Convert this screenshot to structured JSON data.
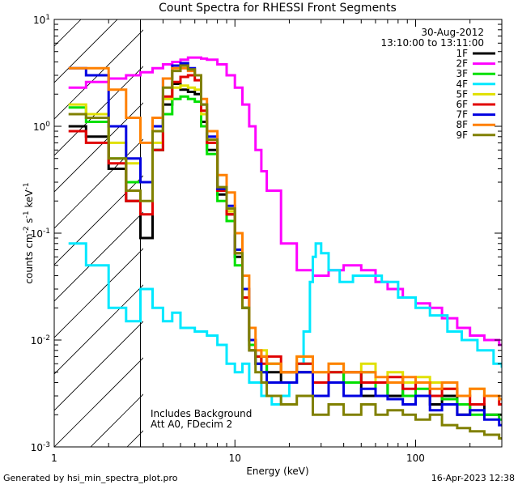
{
  "chart_data": {
    "type": "line",
    "title": "Count Spectra for RHESSI Front Segments",
    "xlabel": "Energy (keV)",
    "ylabel_base": "counts cm",
    "ylabel_exp1": "-2",
    "ylabel_mid": " s",
    "ylabel_exp2": "-1",
    "ylabel_tail": " keV",
    "ylabel_exp3": "-1",
    "x_scale": "log",
    "y_scale": "log",
    "xlim": [
      1,
      300
    ],
    "ylim": [
      0.001,
      10
    ],
    "x_tick_labels": [
      {
        "value": 1,
        "label": "1"
      },
      {
        "value": 10,
        "label": "10"
      },
      {
        "value": 100,
        "label": "100"
      }
    ],
    "y_tick_labels": [
      {
        "value": 10,
        "base": "10",
        "exp": "1"
      },
      {
        "value": 1,
        "base": "10",
        "exp": "0"
      },
      {
        "value": 0.1,
        "base": "10",
        "exp": "-1"
      },
      {
        "value": 0.01,
        "base": "10",
        "exp": "-2"
      },
      {
        "value": 0.001,
        "base": "10",
        "exp": "-3"
      }
    ],
    "date": "30-Aug-2012",
    "time_range": "13:10:00 to 13:11:00",
    "annotations": [
      "Includes Background",
      "Att A0, FDecim 2"
    ],
    "hatched_region_max_energy": 3,
    "series": [
      {
        "name": "1F",
        "color": "#000000",
        "energies": [
          1.2,
          1.5,
          2.0,
          2.5,
          3.0,
          3.5,
          4.0,
          4.5,
          5.0,
          5.5,
          6.0,
          6.5,
          7.0,
          8.0,
          9.0,
          10.0,
          11.0,
          12.0,
          13.0,
          14.0,
          15,
          18,
          22,
          27,
          33,
          40,
          50,
          60,
          70,
          85,
          100,
          120,
          140,
          170,
          200,
          240,
          290
        ],
        "values": [
          1.0,
          0.8,
          0.4,
          0.2,
          0.09,
          0.6,
          1.6,
          2.5,
          2.2,
          2.1,
          2.0,
          1.1,
          0.6,
          0.23,
          0.15,
          0.06,
          0.02,
          0.008,
          0.006,
          0.007,
          0.005,
          0.004,
          0.005,
          0.004,
          0.004,
          0.005,
          0.003,
          0.004,
          0.003,
          0.004,
          0.003,
          0.0025,
          0.003,
          0.002,
          0.0025,
          0.002,
          0.002
        ]
      },
      {
        "name": "2F",
        "color": "#ff00ff",
        "energies": [
          1.2,
          1.5,
          2.0,
          2.5,
          3.0,
          3.5,
          4.0,
          4.5,
          5.0,
          5.5,
          6.0,
          6.5,
          7.0,
          8.0,
          9.0,
          10.0,
          11.0,
          12.0,
          13.0,
          14.0,
          15,
          18,
          22,
          27,
          33,
          40,
          50,
          60,
          70,
          85,
          100,
          120,
          140,
          170,
          200,
          240,
          290
        ],
        "values": [
          2.3,
          2.6,
          2.8,
          3.0,
          3.2,
          3.5,
          3.8,
          4.0,
          4.2,
          4.4,
          4.4,
          4.3,
          4.2,
          3.8,
          3.0,
          2.3,
          1.6,
          1.0,
          0.6,
          0.38,
          0.25,
          0.08,
          0.045,
          0.04,
          0.045,
          0.05,
          0.045,
          0.035,
          0.03,
          0.025,
          0.022,
          0.02,
          0.016,
          0.013,
          0.011,
          0.01,
          0.009
        ]
      },
      {
        "name": "3F",
        "color": "#00e000",
        "energies": [
          1.2,
          1.5,
          2.0,
          2.5,
          3.0,
          3.5,
          4.0,
          4.5,
          5.0,
          5.5,
          6.0,
          6.5,
          7.0,
          8.0,
          9.0,
          10.0,
          11.0,
          12.0,
          13.0,
          14.0,
          15,
          18,
          22,
          27,
          33,
          40,
          50,
          60,
          70,
          85,
          100,
          120,
          140,
          170,
          200,
          240,
          290
        ],
        "values": [
          1.5,
          1.1,
          0.5,
          0.3,
          0.3,
          0.6,
          1.3,
          1.8,
          1.9,
          1.8,
          1.7,
          1.0,
          0.55,
          0.2,
          0.13,
          0.05,
          0.02,
          0.009,
          0.007,
          0.005,
          0.006,
          0.005,
          0.006,
          0.004,
          0.005,
          0.004,
          0.005,
          0.003,
          0.004,
          0.003,
          0.0035,
          0.003,
          0.0028,
          0.0025,
          0.002,
          0.002,
          0.0018
        ]
      },
      {
        "name": "4F",
        "color": "#00e8ff",
        "energies": [
          1.2,
          1.5,
          2.0,
          2.5,
          3.0,
          3.5,
          4.0,
          4.5,
          5.0,
          6.0,
          7.0,
          8.0,
          9.0,
          10.0,
          11.0,
          12.0,
          13.0,
          14.0,
          16,
          18,
          20,
          22,
          24,
          26,
          27,
          28,
          30,
          33,
          38,
          45,
          55,
          65,
          80,
          100,
          120,
          150,
          180,
          220,
          270,
          300
        ],
        "values": [
          0.08,
          0.05,
          0.02,
          0.015,
          0.03,
          0.02,
          0.015,
          0.018,
          0.013,
          0.012,
          0.011,
          0.009,
          0.006,
          0.005,
          0.006,
          0.004,
          0.004,
          0.003,
          0.0025,
          0.003,
          0.004,
          0.006,
          0.012,
          0.035,
          0.06,
          0.08,
          0.065,
          0.045,
          0.035,
          0.04,
          0.04,
          0.035,
          0.025,
          0.02,
          0.017,
          0.012,
          0.01,
          0.008,
          0.006,
          0.0055
        ]
      },
      {
        "name": "5F",
        "color": "#e0e000",
        "energies": [
          1.2,
          1.5,
          2.0,
          2.5,
          3.0,
          3.5,
          4.0,
          4.5,
          5.0,
          5.5,
          6.0,
          6.5,
          7.0,
          8.0,
          9.0,
          10.0,
          11.0,
          12.0,
          13.0,
          14.0,
          15,
          18,
          22,
          27,
          33,
          40,
          50,
          60,
          70,
          85,
          100,
          120,
          140,
          170,
          200,
          240,
          290
        ],
        "values": [
          1.6,
          1.3,
          0.7,
          0.45,
          0.3,
          0.7,
          1.8,
          2.3,
          2.4,
          2.3,
          2.2,
          1.3,
          0.7,
          0.25,
          0.16,
          0.07,
          0.03,
          0.01,
          0.007,
          0.008,
          0.006,
          0.005,
          0.007,
          0.005,
          0.006,
          0.005,
          0.006,
          0.004,
          0.005,
          0.004,
          0.0045,
          0.004,
          0.0035,
          0.003,
          0.0035,
          0.003,
          0.0028
        ]
      },
      {
        "name": "6F",
        "color": "#e00000",
        "energies": [
          1.2,
          1.5,
          2.0,
          2.5,
          3.0,
          3.5,
          4.0,
          4.5,
          5.0,
          5.5,
          6.0,
          6.5,
          7.0,
          8.0,
          9.0,
          10.0,
          11.0,
          12.0,
          13.0,
          14.0,
          15,
          18,
          22,
          27,
          33,
          40,
          50,
          60,
          70,
          85,
          100,
          120,
          140,
          170,
          200,
          240,
          290
        ],
        "values": [
          0.9,
          0.7,
          0.45,
          0.2,
          0.15,
          0.6,
          1.9,
          2.6,
          2.9,
          3.0,
          2.7,
          1.4,
          0.7,
          0.25,
          0.15,
          0.065,
          0.025,
          0.01,
          0.007,
          0.006,
          0.007,
          0.005,
          0.006,
          0.004,
          0.005,
          0.005,
          0.004,
          0.004,
          0.0045,
          0.0035,
          0.004,
          0.003,
          0.0035,
          0.003,
          0.0025,
          0.003,
          0.0025
        ]
      },
      {
        "name": "7F",
        "color": "#0000e0",
        "energies": [
          1.2,
          1.5,
          2.0,
          2.5,
          3.0,
          3.5,
          4.0,
          4.5,
          5.0,
          5.5,
          6.0,
          6.5,
          7.0,
          8.0,
          9.0,
          10.0,
          11.0,
          12.0,
          13.0,
          14.0,
          15,
          18,
          22,
          27,
          33,
          40,
          50,
          60,
          70,
          85,
          100,
          120,
          140,
          170,
          200,
          240,
          290
        ],
        "values": [
          3.5,
          3.0,
          1.0,
          0.5,
          0.3,
          1.0,
          2.8,
          3.7,
          3.9,
          3.5,
          3.0,
          1.6,
          0.8,
          0.26,
          0.18,
          0.07,
          0.03,
          0.01,
          0.006,
          0.005,
          0.004,
          0.004,
          0.005,
          0.003,
          0.004,
          0.003,
          0.0035,
          0.003,
          0.0028,
          0.0025,
          0.003,
          0.0022,
          0.0025,
          0.002,
          0.0022,
          0.0018,
          0.0016
        ]
      },
      {
        "name": "8F",
        "color": "#ff8000",
        "energies": [
          1.2,
          1.5,
          2.0,
          2.5,
          3.0,
          3.5,
          4.0,
          4.5,
          5.0,
          5.5,
          6.0,
          6.5,
          7.0,
          8.0,
          9.0,
          10.0,
          11.0,
          12.0,
          13.0,
          14.0,
          15,
          18,
          22,
          27,
          33,
          40,
          50,
          60,
          70,
          85,
          100,
          120,
          140,
          170,
          200,
          240,
          290
        ],
        "values": [
          3.5,
          3.5,
          2.2,
          1.2,
          0.7,
          1.2,
          2.8,
          3.5,
          3.5,
          3.3,
          3.0,
          1.8,
          0.9,
          0.35,
          0.24,
          0.1,
          0.04,
          0.013,
          0.008,
          0.007,
          0.006,
          0.005,
          0.007,
          0.005,
          0.006,
          0.005,
          0.005,
          0.0045,
          0.004,
          0.0045,
          0.004,
          0.0035,
          0.004,
          0.003,
          0.0035,
          0.003,
          0.0028
        ]
      },
      {
        "name": "9F",
        "color": "#808000",
        "energies": [
          1.2,
          1.5,
          2.0,
          2.5,
          3.0,
          3.5,
          4.0,
          4.5,
          5.0,
          5.5,
          6.0,
          6.5,
          7.0,
          8.0,
          9.0,
          10.0,
          11.0,
          12.0,
          13.0,
          14.0,
          15,
          18,
          22,
          27,
          33,
          40,
          50,
          60,
          70,
          85,
          100,
          120,
          140,
          170,
          200,
          240,
          290
        ],
        "values": [
          1.3,
          1.2,
          0.5,
          0.25,
          0.2,
          0.9,
          2.3,
          3.3,
          3.7,
          3.4,
          3.0,
          1.6,
          0.75,
          0.27,
          0.17,
          0.065,
          0.02,
          0.008,
          0.005,
          0.004,
          0.003,
          0.0025,
          0.003,
          0.002,
          0.0025,
          0.002,
          0.0025,
          0.002,
          0.0022,
          0.002,
          0.0018,
          0.002,
          0.0016,
          0.0015,
          0.0014,
          0.0013,
          0.0012
        ]
      }
    ]
  },
  "footer": {
    "left": "Generated by hsi_min_spectra_plot.pro",
    "right": "16-Apr-2023 12:38"
  }
}
